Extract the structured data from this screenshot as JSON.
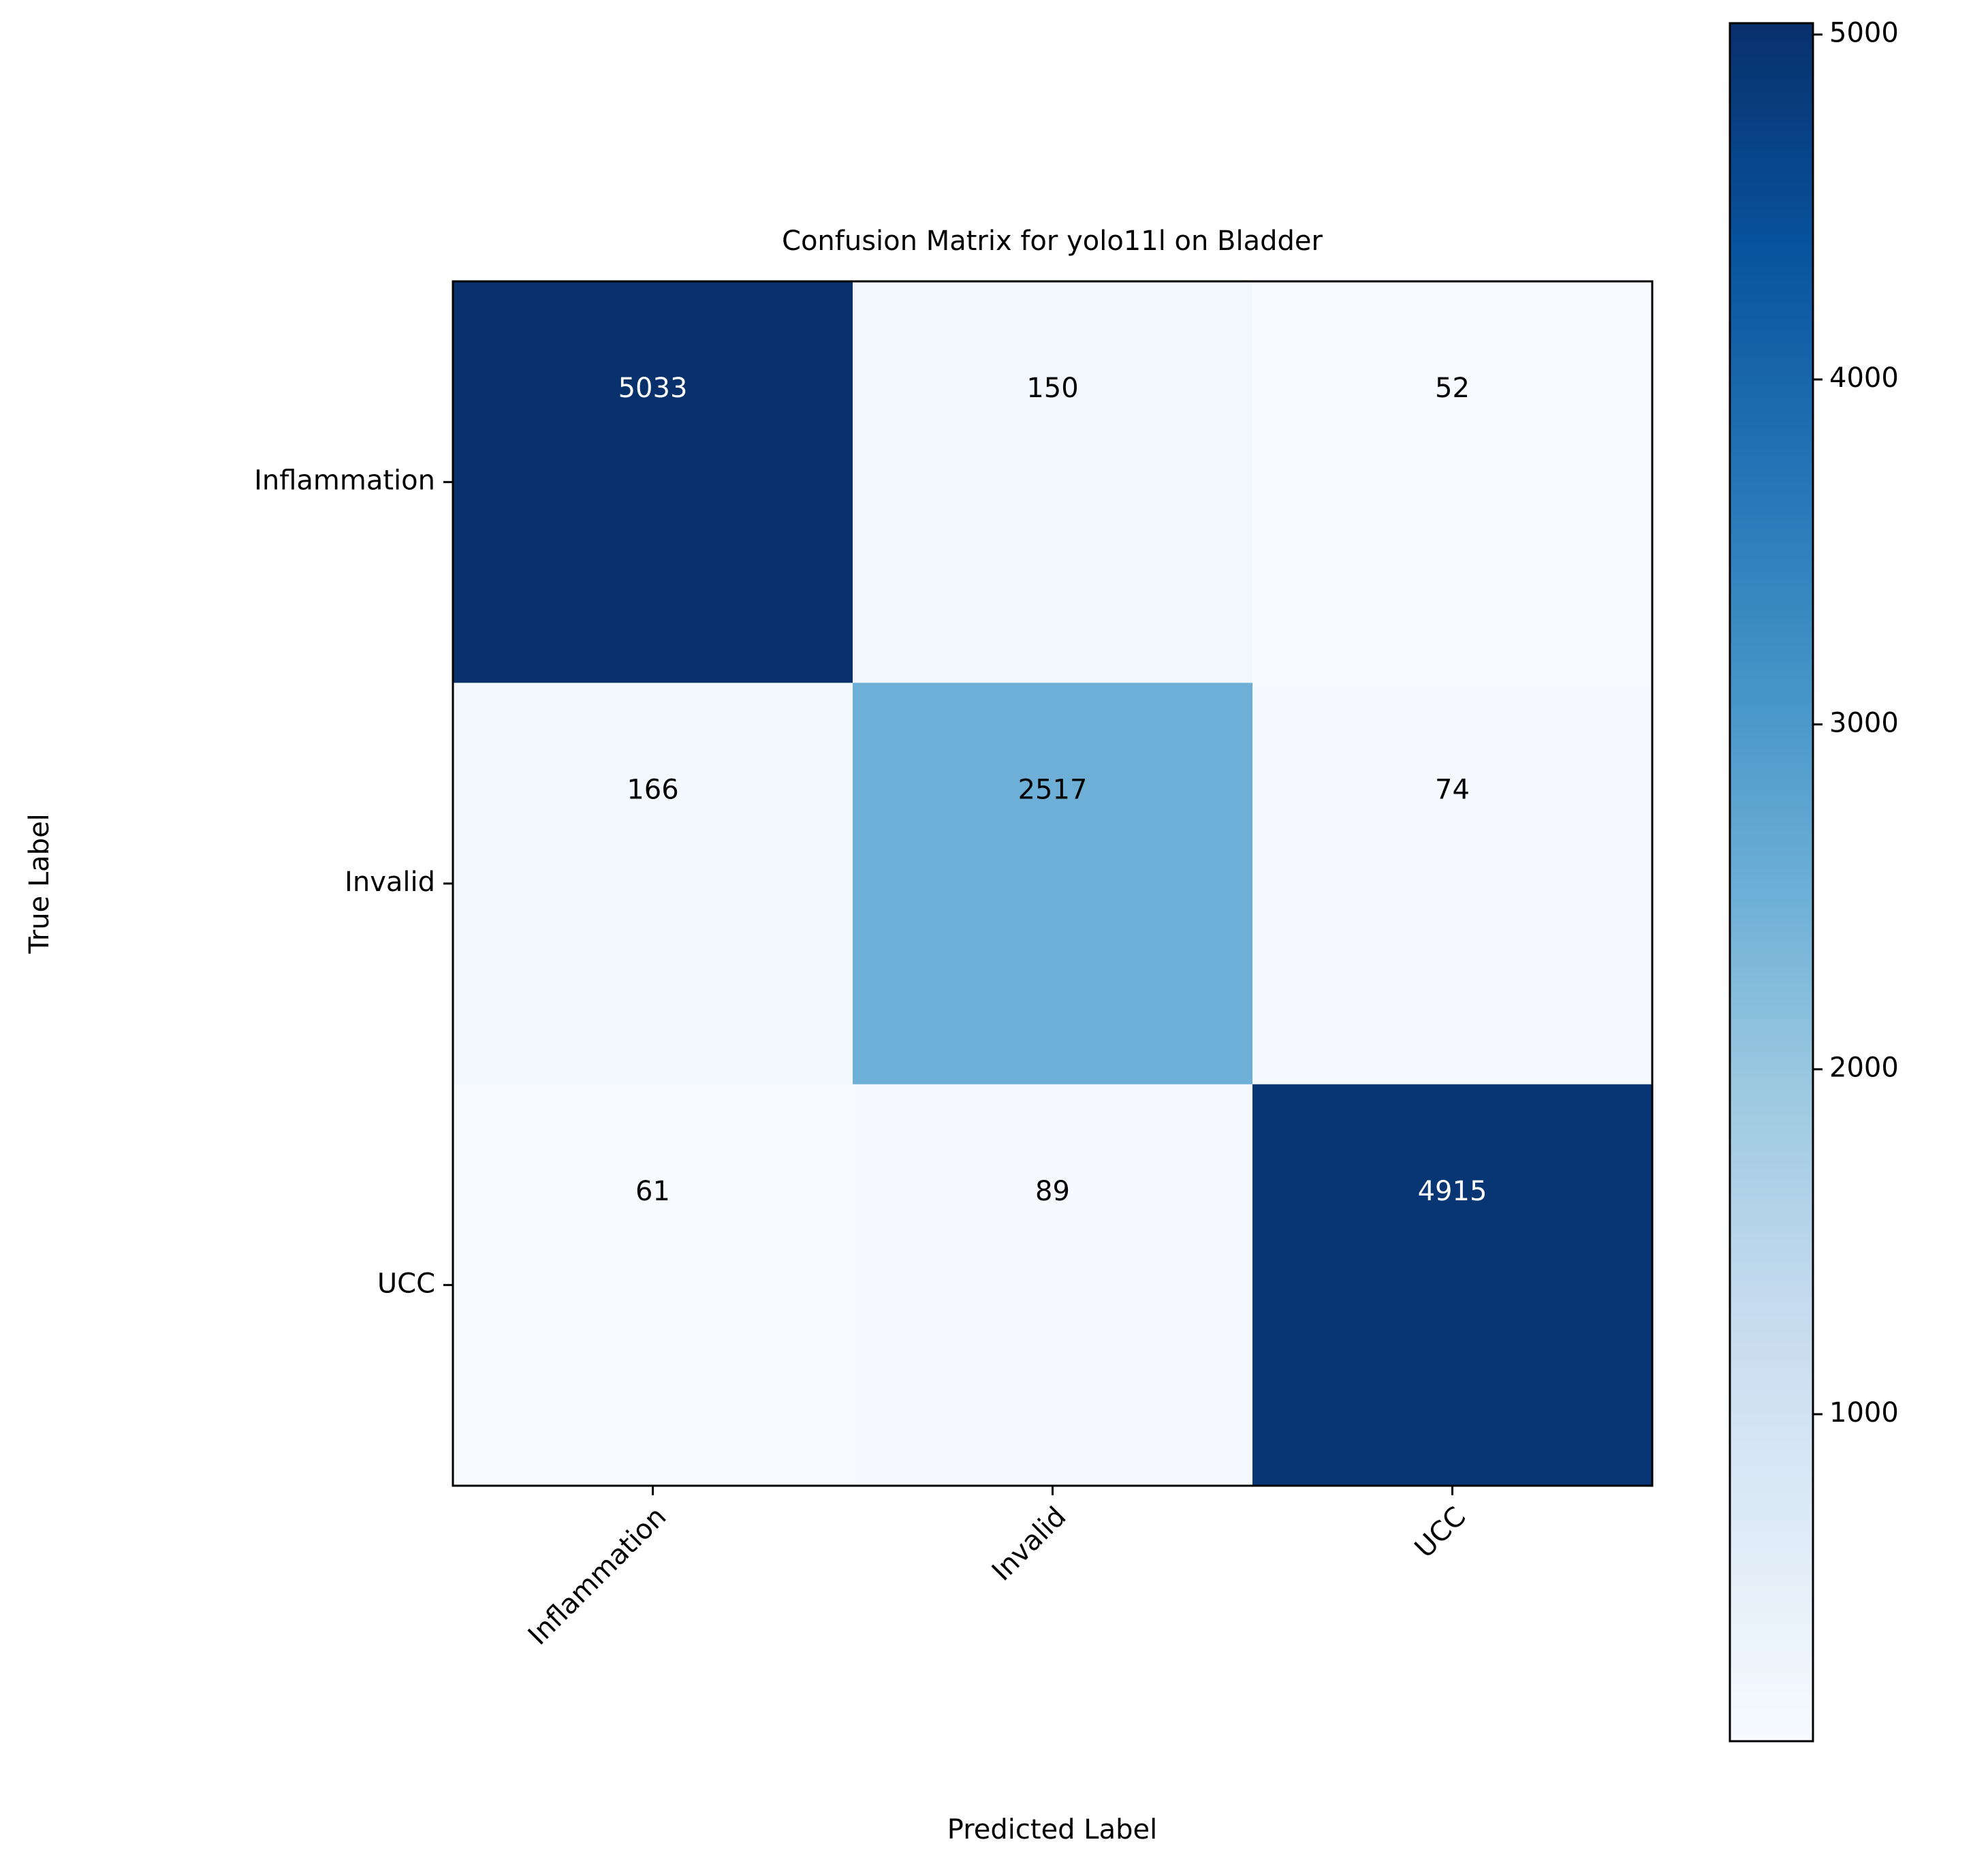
{
  "chart_data": {
    "type": "heatmap",
    "title": "Confusion Matrix for yolo11l on Bladder",
    "xlabel": "Predicted Label",
    "ylabel": "True Label",
    "x_categories": [
      "Inflammation",
      "Invalid",
      "UCC"
    ],
    "y_categories": [
      "Inflammation",
      "Invalid",
      "UCC"
    ],
    "values": [
      [
        5033,
        150,
        52
      ],
      [
        166,
        2517,
        74
      ],
      [
        61,
        89,
        4915
      ]
    ],
    "colormap": "Blues",
    "clim": [
      52,
      5033
    ],
    "cticks": [
      1000,
      2000,
      3000,
      4000,
      5000
    ]
  }
}
